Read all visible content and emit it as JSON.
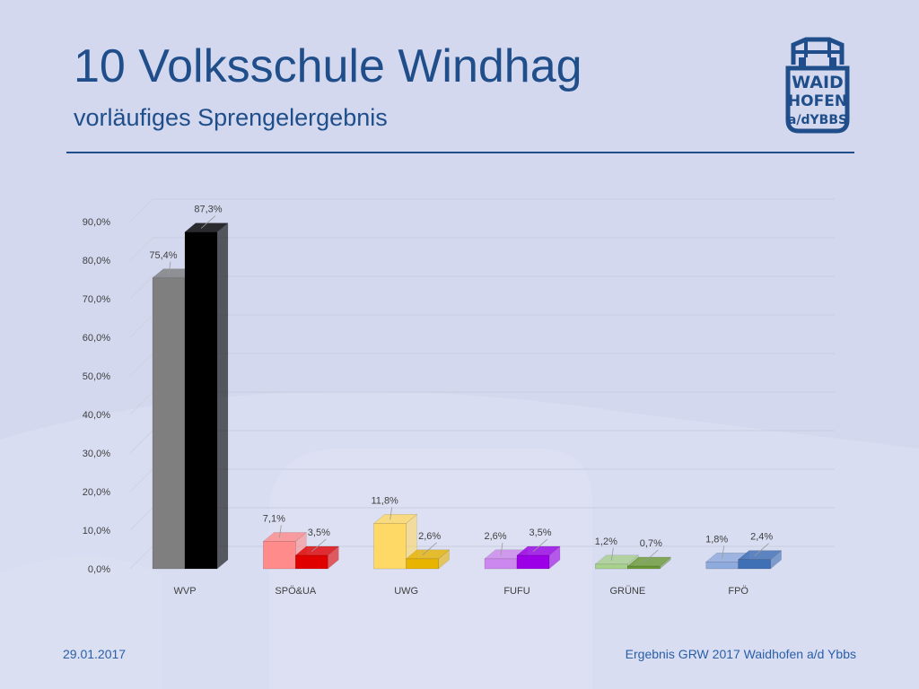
{
  "slide": {
    "title": "10 Volksschule Windhag",
    "subtitle": "vorläufiges Sprengelergebnis",
    "footer_date": "29.01.2017",
    "footer_source": "Ergebnis GRW 2017 Waidhofen a/d Ybbs",
    "logo": {
      "lines": [
        "WAID",
        "HOFEN",
        "a/dYBBS"
      ],
      "icon": "castle-tower-icon"
    }
  },
  "colors": {
    "background": "#d3d8ee",
    "title": "#1f4e8a",
    "footer": "#2a5fa8"
  },
  "chart_data": {
    "type": "bar",
    "ylim": [
      0,
      90
    ],
    "yticks": [
      "0,0%",
      "10,0%",
      "20,0%",
      "30,0%",
      "40,0%",
      "50,0%",
      "60,0%",
      "70,0%",
      "80,0%",
      "90,0%"
    ],
    "categories": [
      "WVP",
      "SPÖ&UA",
      "UWG",
      "FUFU",
      "GRÜNE",
      "FPÖ"
    ],
    "series": [
      {
        "values": [
          75.4,
          7.1,
          11.8,
          2.6,
          1.2,
          1.8
        ],
        "labels": [
          "75,4%",
          "7,1%",
          "11,8%",
          "2,6%",
          "1,2%",
          "1,8%"
        ],
        "colors": [
          "#7f7f7f",
          "#ff8b8b",
          "#ffd966",
          "#cc88ee",
          "#a9d18e",
          "#8faadc"
        ]
      },
      {
        "values": [
          87.3,
          3.5,
          2.6,
          3.5,
          0.7,
          2.4
        ],
        "labels": [
          "87,3%",
          "3,5%",
          "2,6%",
          "3,5%",
          "0,7%",
          "2,4%"
        ],
        "colors": [
          "#000000",
          "#e00000",
          "#e8b400",
          "#9b00e6",
          "#6b9a35",
          "#3f6fb5"
        ]
      }
    ],
    "grid": true,
    "legend": "none"
  }
}
